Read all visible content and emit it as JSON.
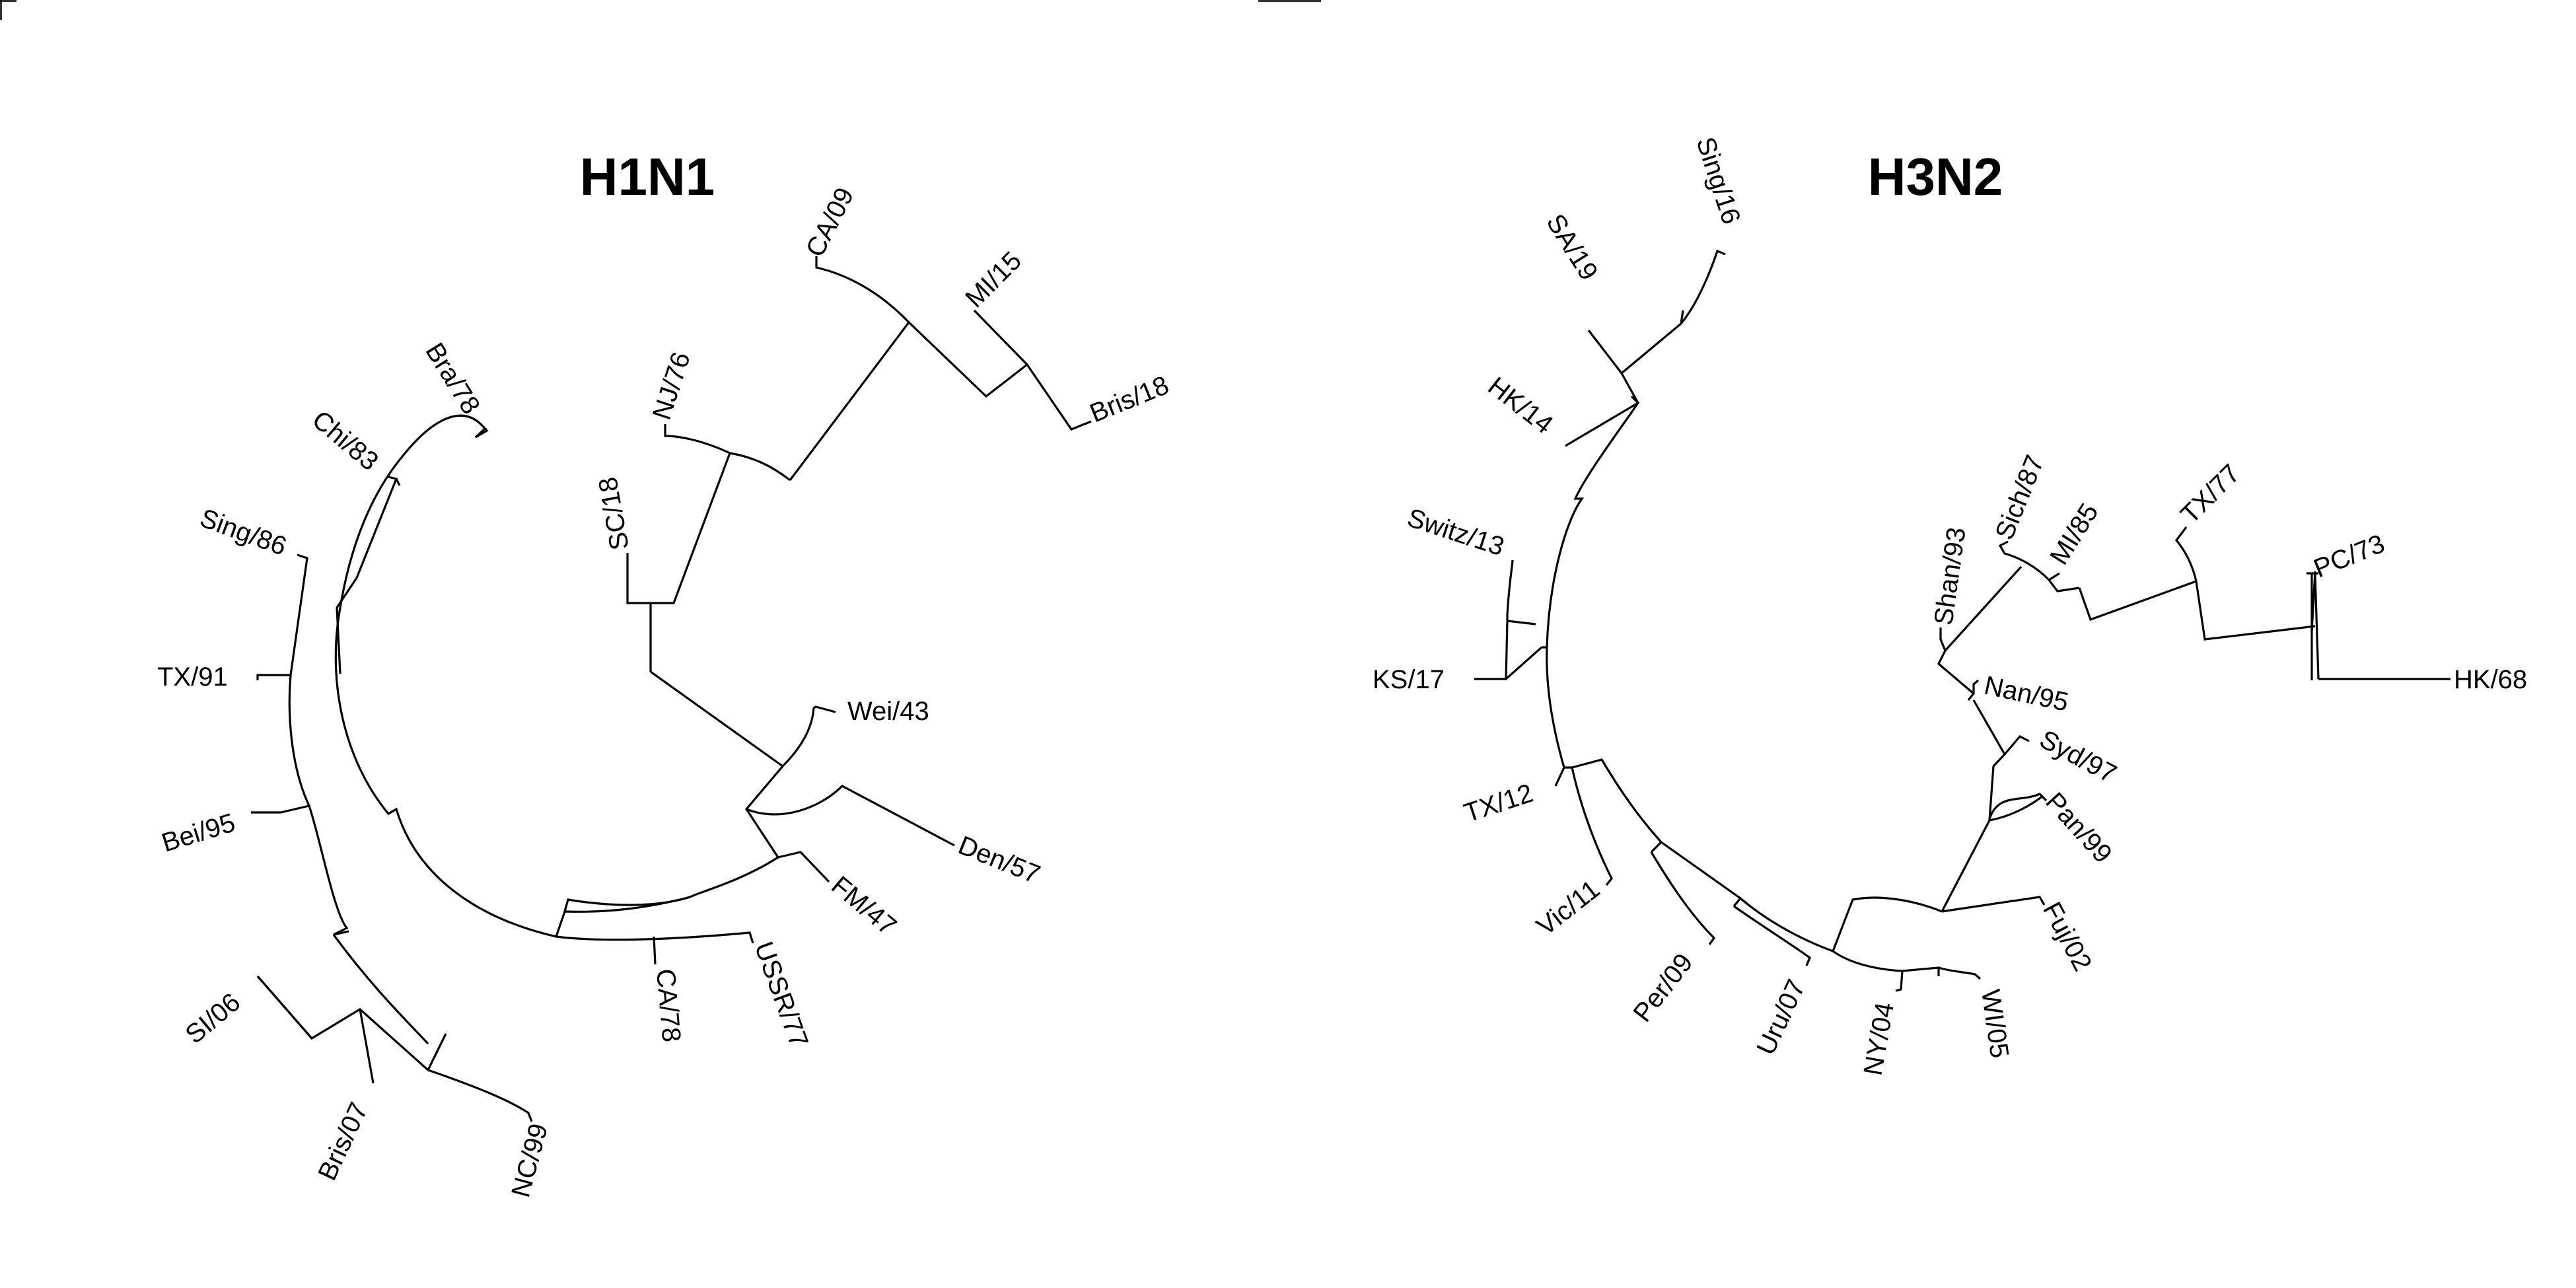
{
  "trees": [
    {
      "title": "H1N1",
      "leaves": [
        {
          "id": "ca09",
          "label": "CA/09"
        },
        {
          "id": "mi15",
          "label": "MI/15"
        },
        {
          "id": "bris18",
          "label": "Bris/18"
        },
        {
          "id": "nj76",
          "label": "NJ/76"
        },
        {
          "id": "sc18",
          "label": "SC/18"
        },
        {
          "id": "wei43",
          "label": "Wei/43"
        },
        {
          "id": "den57",
          "label": "Den/57"
        },
        {
          "id": "fm47",
          "label": "FM/47"
        },
        {
          "id": "ussr77",
          "label": "USSR/77"
        },
        {
          "id": "ca78",
          "label": "CA/78"
        },
        {
          "id": "nc99",
          "label": "NC/99"
        },
        {
          "id": "bris07",
          "label": "Bris/07"
        },
        {
          "id": "si06",
          "label": "SI/06"
        },
        {
          "id": "bei95",
          "label": "Bei/95"
        },
        {
          "id": "tx91",
          "label": "TX/91"
        },
        {
          "id": "sing86",
          "label": "Sing/86"
        },
        {
          "id": "chi83",
          "label": "Chi/83"
        },
        {
          "id": "bra78",
          "label": "Bra/78"
        }
      ]
    },
    {
      "title": "H3N2",
      "leaves": [
        {
          "id": "sing16",
          "label": "Sing/16"
        },
        {
          "id": "sa19",
          "label": "SA/19"
        },
        {
          "id": "hk14",
          "label": "HK/14"
        },
        {
          "id": "switz13",
          "label": "Switz/13"
        },
        {
          "id": "ks17",
          "label": "KS/17"
        },
        {
          "id": "tx12",
          "label": "TX/12"
        },
        {
          "id": "vic11",
          "label": "Vic/11"
        },
        {
          "id": "per09",
          "label": "Per/09"
        },
        {
          "id": "uru07",
          "label": "Uru/07"
        },
        {
          "id": "ny04",
          "label": "NY/04"
        },
        {
          "id": "wi05",
          "label": "WI/05"
        },
        {
          "id": "fuj02",
          "label": "Fuj/02"
        },
        {
          "id": "pan99",
          "label": "Pan/99"
        },
        {
          "id": "syd97",
          "label": "Syd/97"
        },
        {
          "id": "nan95",
          "label": "Nan/95"
        },
        {
          "id": "shan93",
          "label": "Shan/93"
        },
        {
          "id": "sich87",
          "label": "Sich/87"
        },
        {
          "id": "mi85",
          "label": "MI/85"
        },
        {
          "id": "tx77",
          "label": "TX/77"
        },
        {
          "id": "pc73",
          "label": "PC/73"
        },
        {
          "id": "hk68",
          "label": "HK/68"
        }
      ]
    }
  ]
}
